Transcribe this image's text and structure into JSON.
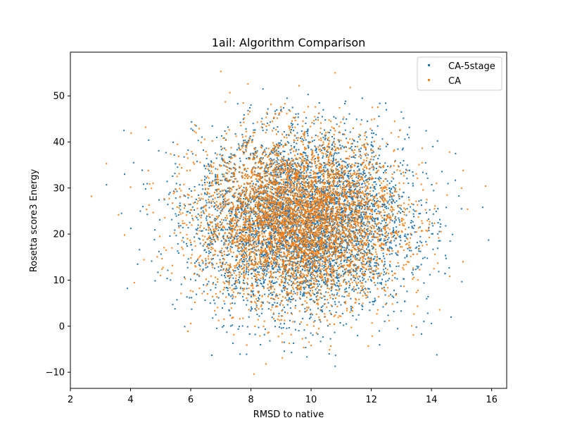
{
  "chart_data": {
    "type": "scatter",
    "title": "1ail: Algorithm Comparison",
    "xlabel": "RMSD to native",
    "ylabel": "Rosetta score3 Energy",
    "xlim": [
      2.0,
      16.5
    ],
    "ylim": [
      -13.5,
      59.5
    ],
    "xticks": [
      "2",
      "4",
      "6",
      "8",
      "10",
      "12",
      "14",
      "16"
    ],
    "yticks": [
      "−10",
      "0",
      "10",
      "20",
      "30",
      "40",
      "50"
    ],
    "xtick_values": [
      2,
      4,
      6,
      8,
      10,
      12,
      14,
      16
    ],
    "ytick_values": [
      -10,
      0,
      10,
      20,
      30,
      40,
      50
    ],
    "grid": false,
    "legend_position": "top-right",
    "series": [
      {
        "name": "CA-5stage",
        "color": "#1f77b4",
        "distribution": {
          "count": 5000,
          "x_mean": 9.7,
          "x_sd": 1.75,
          "y_mean": 22.5,
          "y_sd": 9.5
        },
        "points": [
          [
            3.2,
            30.7
          ],
          [
            3.7,
            24.5
          ],
          [
            3.8,
            33.0
          ],
          [
            4.1,
            35.5
          ],
          [
            4.3,
            16.6
          ],
          [
            4.6,
            40.4
          ],
          [
            5.4,
            4.7
          ],
          [
            5.8,
            -0.1
          ],
          [
            6.7,
            -6.3
          ],
          [
            7.2,
            -1.3
          ],
          [
            8.0,
            48.0
          ],
          [
            8.4,
            51.5
          ],
          [
            9.2,
            49.5
          ],
          [
            9.9,
            50.3
          ],
          [
            10.6,
            -6.0
          ],
          [
            10.8,
            -8.7
          ],
          [
            11.7,
            49.5
          ],
          [
            12.5,
            47.0
          ],
          [
            13.0,
            46.5
          ],
          [
            13.5,
            -0.2
          ],
          [
            14.0,
            0.6
          ],
          [
            14.2,
            40.2
          ],
          [
            14.8,
            37.5
          ],
          [
            15.0,
            25.5
          ],
          [
            15.7,
            25.8
          ],
          [
            15.9,
            18.7
          ]
        ]
      },
      {
        "name": "CA",
        "color": "#ff7f0e",
        "distribution": {
          "count": 5000,
          "x_mean": 9.6,
          "x_sd": 1.65,
          "y_mean": 23.0,
          "y_sd": 9.0
        },
        "points": [
          [
            2.7,
            28.2
          ],
          [
            3.2,
            35.3
          ],
          [
            3.6,
            24.2
          ],
          [
            3.8,
            19.8
          ],
          [
            4.0,
            30.2
          ],
          [
            4.5,
            43.2
          ],
          [
            6.0,
            0.6
          ],
          [
            7.0,
            55.3
          ],
          [
            7.3,
            50.7
          ],
          [
            7.9,
            52.6
          ],
          [
            8.1,
            -10.4
          ],
          [
            8.5,
            -8.2
          ],
          [
            9.0,
            47.6
          ],
          [
            9.6,
            52.2
          ],
          [
            10.0,
            -4.2
          ],
          [
            10.8,
            55.0
          ],
          [
            11.3,
            51.8
          ],
          [
            11.9,
            -4.3
          ],
          [
            12.1,
            45.0
          ],
          [
            13.4,
            -1.9
          ],
          [
            14.1,
            25.5
          ],
          [
            14.6,
            37.8
          ],
          [
            15.0,
            30.0
          ],
          [
            15.2,
            25.4
          ],
          [
            15.8,
            30.4
          ]
        ]
      }
    ]
  }
}
